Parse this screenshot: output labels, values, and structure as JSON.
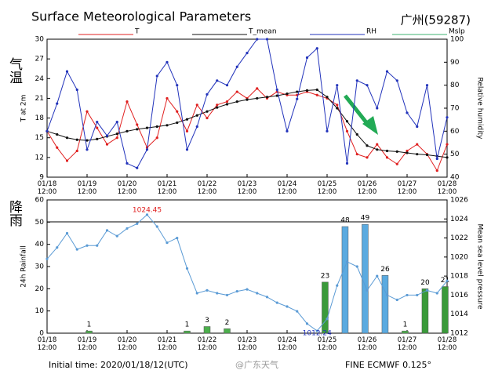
{
  "chart_data": [
    {
      "type": "line",
      "title": "Surface Meteorological Parameters",
      "subtitle": "广州(59287)",
      "side_label": "气温",
      "ylabel": "T at 2m",
      "y2label": "Relative humidity",
      "xlim": [
        0,
        10
      ],
      "xticks": [
        {
          "value": 0,
          "label": "01/18 12:00"
        },
        {
          "value": 1,
          "label": "01/19 12:00"
        },
        {
          "value": 2,
          "label": "01/20 12:00"
        },
        {
          "value": 3,
          "label": "01/21 12:00"
        },
        {
          "value": 4,
          "label": "01/22 12:00"
        },
        {
          "value": 5,
          "label": "01/23 12:00"
        },
        {
          "value": 6,
          "label": "01/24 12:00"
        },
        {
          "value": 7,
          "label": "01/25 12:00"
        },
        {
          "value": 8,
          "label": "01/26 12:00"
        },
        {
          "value": 9,
          "label": "01/27 12:00"
        },
        {
          "value": 10,
          "label": "01/28 12:00"
        }
      ],
      "ylim": [
        9,
        30
      ],
      "yticks": [
        9,
        12,
        15,
        18,
        21,
        24,
        27,
        30
      ],
      "y2lim": [
        40,
        100
      ],
      "y2ticks": [
        40,
        50,
        60,
        70,
        80,
        90,
        100
      ],
      "x": [
        0,
        0.25,
        0.5,
        0.75,
        1,
        1.25,
        1.5,
        1.75,
        2,
        2.25,
        2.5,
        2.75,
        3,
        3.25,
        3.5,
        3.75,
        4,
        4.25,
        4.5,
        4.75,
        5,
        5.25,
        5.5,
        5.75,
        6,
        6.25,
        6.5,
        6.75,
        7,
        7.25,
        7.5,
        7.75,
        8,
        8.25,
        8.5,
        8.75,
        9,
        9.25,
        9.5,
        9.75,
        10
      ],
      "series": [
        {
          "name": "T",
          "color": "#e02020",
          "values": [
            16,
            13.5,
            11.5,
            13,
            19,
            16.5,
            14,
            15,
            20.5,
            17,
            13.5,
            15,
            21,
            19,
            16,
            20,
            18,
            20,
            20.5,
            22,
            21,
            22.5,
            21,
            22,
            21.5,
            21.5,
            22,
            21.5,
            21,
            20,
            16,
            12.5,
            12,
            14,
            12,
            11,
            13,
            14,
            12.5,
            10,
            14
          ]
        },
        {
          "name": "T_mean",
          "color": "#111111",
          "values": [
            16,
            15.5,
            15,
            14.7,
            14.6,
            14.8,
            15.2,
            15.6,
            16,
            16.3,
            16.5,
            16.7,
            16.9,
            17.3,
            17.8,
            18.4,
            19,
            19.6,
            20.1,
            20.5,
            20.8,
            21,
            21.2,
            21.4,
            21.7,
            22,
            22.2,
            22.3,
            21.2,
            19.5,
            17.5,
            15.5,
            13.8,
            13.2,
            13,
            12.9,
            12.7,
            12.5,
            12.4,
            12.2,
            12
          ]
        },
        {
          "name": "RH",
          "color": "#2233bb",
          "axis": "y2",
          "values": [
            60,
            72,
            86,
            78,
            52,
            64,
            58,
            64,
            46,
            44,
            52,
            84,
            90,
            80,
            52,
            62,
            76,
            82,
            80,
            88,
            94,
            100,
            100,
            78,
            60,
            74,
            92,
            96,
            60,
            80,
            46,
            82,
            80,
            70,
            86,
            82,
            68,
            62,
            80,
            48,
            66
          ]
        }
      ]
    },
    {
      "type": "bar",
      "side_label": "降雨",
      "ylabel": "24h Rainfall",
      "y2label": "Mean sea level pressure",
      "xlim": [
        0,
        10
      ],
      "xticks": [
        {
          "value": 0,
          "label": "01/18 12:00"
        },
        {
          "value": 1,
          "label": "01/19 12:00"
        },
        {
          "value": 2,
          "label": "01/20 12:00"
        },
        {
          "value": 3,
          "label": "01/21 12:00"
        },
        {
          "value": 4,
          "label": "01/22 12:00"
        },
        {
          "value": 5,
          "label": "01/23 12:00"
        },
        {
          "value": 6,
          "label": "01/24 12:00"
        },
        {
          "value": 7,
          "label": "01/25 12:00"
        },
        {
          "value": 8,
          "label": "01/26 12:00"
        },
        {
          "value": 9,
          "label": "01/27 12:00"
        },
        {
          "value": 10,
          "label": "01/28 12:00"
        }
      ],
      "ylim": [
        0,
        60
      ],
      "yticks": [
        0,
        10,
        20,
        30,
        40,
        50,
        60
      ],
      "y2lim": [
        1012,
        1026
      ],
      "y2ticks": [
        1012,
        1014,
        1016,
        1018,
        1020,
        1022,
        1024,
        1026
      ],
      "x": [
        1.05,
        3.5,
        4,
        4.5,
        6.95,
        7.45,
        7.95,
        8.45,
        8.95,
        9.45,
        9.95
      ],
      "values": [
        1,
        1,
        3,
        2,
        23,
        48,
        49,
        26,
        1,
        20,
        21
      ],
      "colors": [
        "#4cb04c",
        "#4cb04c",
        "#4cb04c",
        "#4cb04c",
        "#3a9a3a",
        "#5aaae0",
        "#5aaae0",
        "#5aaae0",
        "#4cb04c",
        "#3a9a3a",
        "#3a9a3a"
      ],
      "series": [
        {
          "name": "Mslp",
          "color": "#5b9bd5",
          "legend_color": "#3cb371",
          "axis": "y2",
          "x": [
            0,
            0.25,
            0.5,
            0.75,
            1,
            1.25,
            1.5,
            1.75,
            2,
            2.25,
            2.5,
            2.75,
            3,
            3.25,
            3.5,
            3.75,
            4,
            4.25,
            4.5,
            4.75,
            5,
            5.25,
            5.5,
            5.75,
            6,
            6.25,
            6.5,
            6.75,
            7,
            7.25,
            7.5,
            7.75,
            8,
            8.25,
            8.5,
            8.75,
            9,
            9.25,
            9.5,
            9.75,
            10
          ],
          "values": [
            1019.8,
            1021,
            1022.5,
            1020.8,
            1021.2,
            1021.2,
            1022.8,
            1022.2,
            1023,
            1023.5,
            1024.45,
            1023.2,
            1021.5,
            1022,
            1018.8,
            1016.2,
            1016.5,
            1016.2,
            1016,
            1016.4,
            1016.6,
            1016.2,
            1015.8,
            1015.2,
            1014.8,
            1014.3,
            1013,
            1012.24,
            1013.5,
            1017,
            1019.5,
            1019,
            1016.5,
            1018,
            1016,
            1015.5,
            1016,
            1016,
            1016.5,
            1016.2,
            1017.5
          ]
        }
      ],
      "annotations": [
        {
          "text": "1024.45",
          "color": "#e02020"
        },
        {
          "text": "1012.24",
          "color": "#2233bb"
        }
      ]
    }
  ],
  "footer": {
    "initial_time": "Initial time: 2020/01/18/12(UTC)",
    "model": "FINE ECMWF 0.125°",
    "watermark": "@广东天气"
  }
}
